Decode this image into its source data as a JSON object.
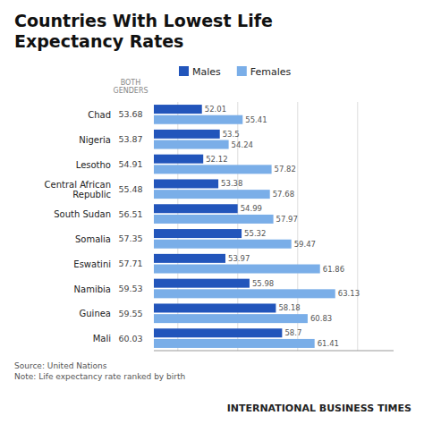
{
  "chart_data": {
    "type": "bar",
    "orientation": "horizontal",
    "title": "Countries With Lowest Life\nExpectancy Rates",
    "categories": [
      "Chad",
      "Nigeria",
      "Lesotho",
      "Central African\nRepublic",
      "South Sudan",
      "Somalia",
      "Eswatini",
      "Namibia",
      "Guinea",
      "Mali"
    ],
    "series": [
      {
        "name": "Males",
        "color": "#2255bb",
        "values": [
          52.01,
          53.5,
          52.12,
          53.38,
          54.99,
          55.32,
          53.97,
          55.98,
          58.18,
          58.7
        ]
      },
      {
        "name": "Females",
        "color": "#7aaee8",
        "values": [
          55.41,
          54.24,
          57.82,
          57.68,
          57.97,
          59.47,
          61.86,
          63.13,
          60.83,
          61.41
        ]
      }
    ],
    "both_genders": {
      "label": "BOTH\nGENDERS",
      "values": [
        53.68,
        53.87,
        54.91,
        55.48,
        56.51,
        57.35,
        57.71,
        59.53,
        59.55,
        60.03
      ]
    },
    "xlim": [
      48,
      68
    ],
    "xticks": [
      50,
      55,
      60,
      65
    ],
    "tick_labels": false,
    "grid": true,
    "data_labels": true,
    "legend": "top",
    "annotations": [
      "Source: United Nations\nNote: Life expectancy rate ranked by birth",
      "INTERNATIONAL BUSINESS TIMES"
    ]
  }
}
